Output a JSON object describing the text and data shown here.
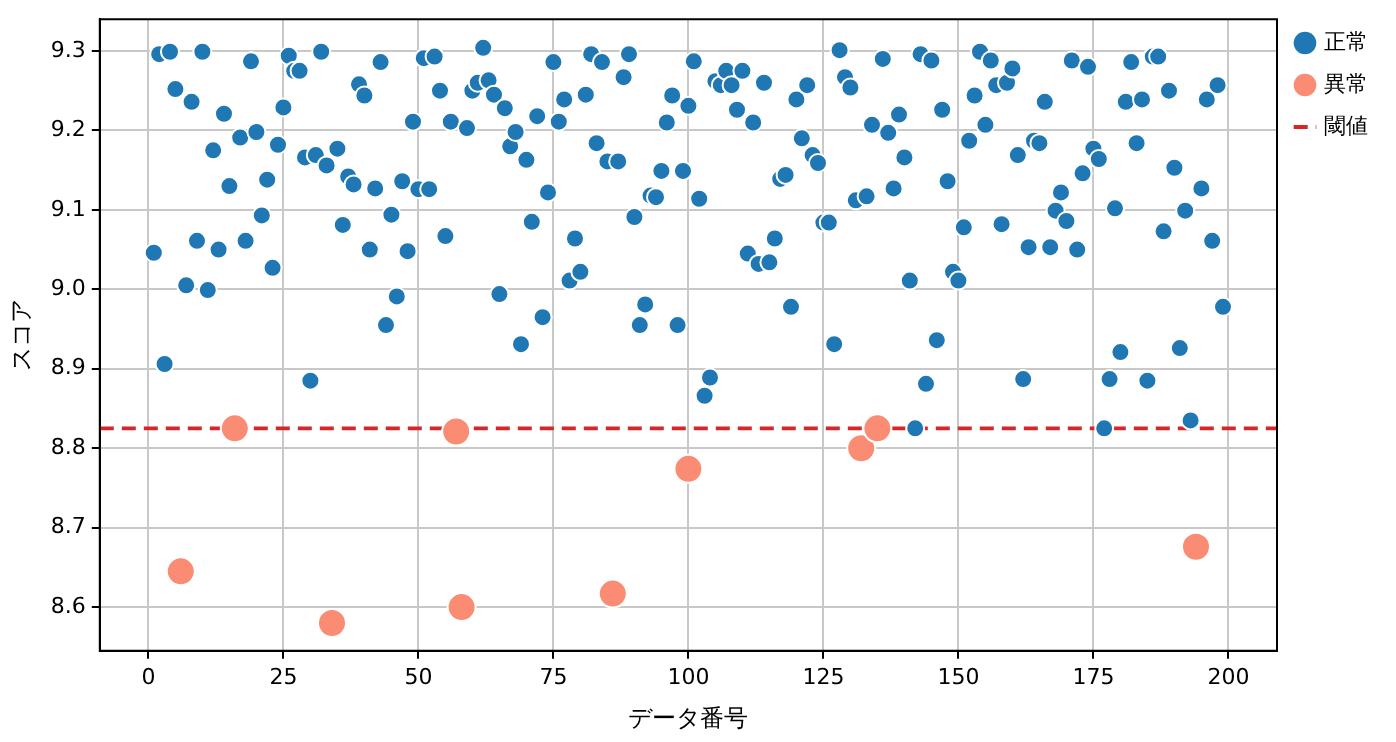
{
  "chart_data": {
    "type": "scatter",
    "xlabel": "データ番号",
    "ylabel": "スコア",
    "xlim": [
      -9,
      209
    ],
    "ylim": [
      8.545,
      9.34
    ],
    "xticks": [
      0,
      25,
      50,
      75,
      100,
      125,
      150,
      175,
      200
    ],
    "yticks": [
      8.6,
      8.7,
      8.8,
      8.9,
      {
        "value": 9,
        "label": "9.0"
      },
      9.1,
      9.2,
      9.3
    ],
    "grid": true,
    "legend": "top right",
    "marker": "circle",
    "series": [
      {
        "name": "正常",
        "color": "#1f77b4",
        "x": [
          1,
          3,
          2,
          4,
          5,
          7,
          8,
          10,
          9,
          11,
          12,
          13,
          14,
          15,
          17,
          18,
          19,
          20,
          21,
          22,
          23,
          24,
          25,
          26,
          27,
          28,
          29,
          30,
          31,
          32,
          33,
          35,
          36,
          37,
          38,
          39,
          40,
          41,
          42,
          43,
          44,
          45,
          46,
          47,
          48,
          49,
          50,
          51,
          52,
          53,
          54,
          55,
          56,
          59,
          60,
          61,
          62,
          63,
          64,
          65,
          66,
          67,
          68,
          69,
          70,
          71,
          72,
          73,
          74,
          75,
          76,
          77,
          78,
          79,
          80,
          81,
          82,
          83,
          84,
          85,
          87,
          88,
          89,
          90,
          91,
          92,
          93,
          94,
          95,
          96,
          97,
          98,
          99,
          100,
          101,
          102,
          103,
          104,
          105,
          106,
          107,
          108,
          109,
          110,
          111,
          112,
          113,
          114,
          115,
          116,
          117,
          118,
          119,
          120,
          121,
          122,
          123,
          124,
          125,
          126,
          127,
          128,
          129,
          130,
          131,
          133,
          134,
          136,
          137,
          138,
          139,
          140,
          141,
          142,
          143,
          144,
          145,
          146,
          147,
          148,
          149,
          150,
          151,
          152,
          153,
          154,
          155,
          156,
          157,
          158,
          159,
          160,
          161,
          162,
          163,
          164,
          165,
          166,
          167,
          168,
          169,
          170,
          171,
          172,
          173,
          174,
          175,
          176,
          177,
          178,
          179,
          180,
          181,
          182,
          183,
          184,
          185,
          186,
          187,
          188,
          189,
          190,
          191,
          192,
          193,
          195,
          196,
          197,
          198,
          199
        ],
        "values": [
          9.046,
          8.906,
          9.296,
          9.299,
          9.252,
          9.005,
          9.236,
          9.299,
          9.061,
          8.999,
          9.175,
          9.05,
          9.221,
          9.13,
          9.191,
          9.061,
          9.287,
          9.198,
          9.093,
          9.138,
          9.027,
          9.182,
          9.229,
          9.294,
          9.275,
          9.275,
          9.166,
          8.885,
          9.169,
          9.299,
          9.156,
          9.177,
          9.081,
          9.142,
          9.132,
          9.258,
          9.244,
          9.05,
          9.127,
          9.286,
          8.955,
          9.094,
          8.991,
          9.136,
          9.048,
          9.211,
          9.126,
          9.291,
          9.126,
          9.293,
          9.25,
          9.067,
          9.211,
          9.203,
          9.25,
          9.26,
          9.304,
          9.263,
          9.245,
          8.994,
          9.228,
          9.18,
          9.198,
          8.931,
          9.163,
          9.085,
          9.218,
          8.965,
          9.122,
          9.286,
          9.211,
          9.239,
          9.011,
          9.064,
          9.022,
          9.245,
          9.296,
          9.184,
          9.286,
          9.161,
          9.161,
          9.267,
          9.296,
          9.091,
          8.955,
          8.981,
          9.118,
          9.116,
          9.149,
          9.21,
          9.244,
          8.955,
          9.149,
          9.231,
          9.287,
          9.114,
          8.866,
          8.889,
          9.262,
          9.257,
          9.275,
          9.257,
          9.226,
          9.275,
          9.045,
          9.21,
          9.032,
          9.26,
          9.034,
          9.064,
          9.139,
          9.144,
          8.978,
          9.239,
          9.19,
          9.257,
          9.169,
          9.159,
          9.084,
          9.084,
          8.931,
          9.301,
          9.267,
          9.254,
          9.112,
          9.117,
          9.207,
          9.29,
          9.197,
          9.127,
          9.22,
          9.166,
          9.011,
          8.825,
          9.296,
          8.881,
          9.288,
          8.936,
          9.226,
          9.136,
          9.022,
          9.011,
          9.078,
          9.187,
          9.244,
          9.299,
          9.207,
          9.288,
          9.257,
          9.082,
          9.26,
          9.278,
          9.169,
          8.887,
          9.053,
          9.187,
          9.184,
          9.236,
          9.053,
          9.099,
          9.122,
          9.086,
          9.288,
          9.05,
          9.146,
          9.28,
          9.177,
          9.164,
          8.825,
          8.887,
          9.102,
          8.921,
          9.236,
          9.286,
          9.184,
          9.239,
          8.885,
          9.293,
          9.293,
          9.073,
          9.25,
          9.153,
          8.926,
          9.099,
          8.835,
          9.127,
          9.239,
          9.061,
          9.257,
          8.978
        ]
      },
      {
        "name": "異常",
        "color": "#fa8c74",
        "x": [
          6,
          16,
          34,
          57,
          58,
          86,
          100,
          132,
          135,
          194
        ],
        "values": [
          8.645,
          8.825,
          8.58,
          8.821,
          8.6,
          8.617,
          8.774,
          8.8,
          8.825,
          8.676
        ]
      }
    ],
    "ref_lines": [
      {
        "axis": "y",
        "value": 8.825,
        "label": "閾値",
        "color": "#d62728",
        "line_style": "dashed"
      }
    ]
  }
}
